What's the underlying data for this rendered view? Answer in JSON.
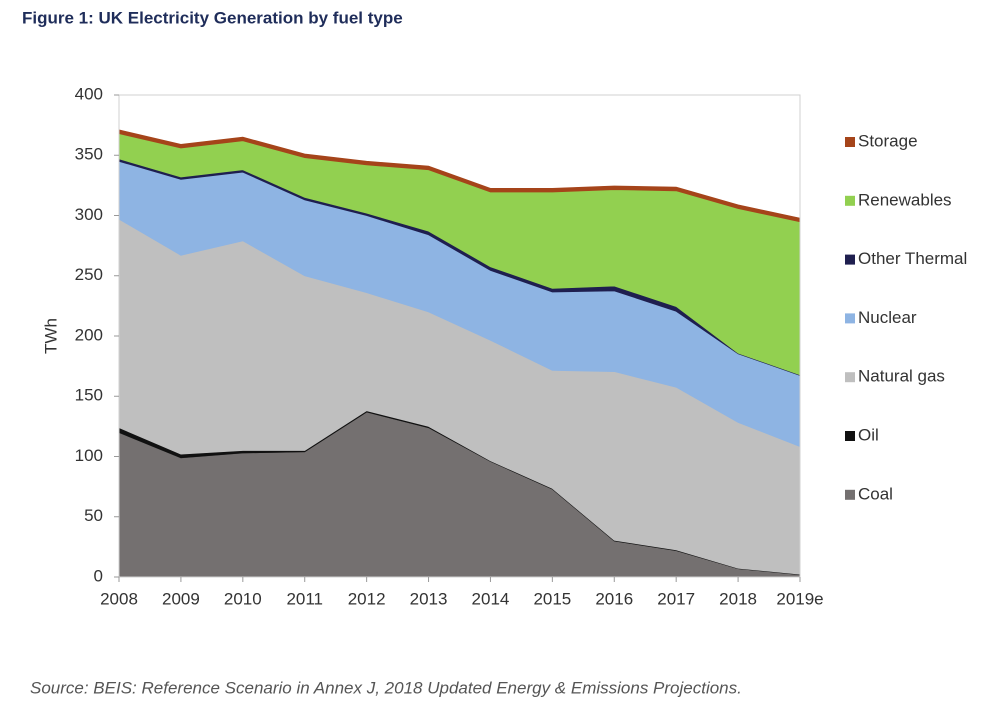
{
  "chart_data": {
    "type": "stacked_area",
    "title": "Figure 1: UK Electricity Generation by fuel type",
    "y_label": "TWh",
    "source": "Source: BEIS: Reference Scenario in Annex J, 2018 Updated Energy & Emissions Projections.",
    "categories": [
      "2008",
      "2009",
      "2010",
      "2011",
      "2012",
      "2013",
      "2014",
      "2015",
      "2016",
      "2017",
      "2018",
      "2019e"
    ],
    "ylim": [
      0,
      400
    ],
    "yticks": [
      0,
      50,
      100,
      150,
      200,
      250,
      300,
      350,
      400
    ],
    "grid": false,
    "legend": "right",
    "series": [
      {
        "name": "Coal",
        "color": "#747070",
        "values": [
          120,
          99,
          103,
          104,
          137,
          124,
          96,
          73,
          30,
          22,
          7,
          2
        ]
      },
      {
        "name": "Oil",
        "color": "#111111",
        "values": [
          4,
          3,
          2,
          1,
          1,
          1,
          0.5,
          0.5,
          0.5,
          0.5,
          0.3,
          0.3
        ]
      },
      {
        "name": "Natural gas",
        "color": "#bfbfbf",
        "values": [
          173,
          165,
          174,
          145,
          98,
          95,
          100,
          98,
          140,
          135,
          121,
          106
        ]
      },
      {
        "name": "Nuclear",
        "color": "#8eb4e3",
        "values": [
          48,
          63,
          57,
          63,
          64,
          64,
          58,
          65,
          67,
          63,
          57,
          59
        ]
      },
      {
        "name": "Other Thermal",
        "color": "#1f1f4f",
        "values": [
          2,
          2,
          2,
          2,
          2,
          3,
          3,
          3,
          4,
          4,
          0.5,
          0.5
        ]
      },
      {
        "name": "Renewables",
        "color": "#92d050",
        "values": [
          21,
          24,
          24,
          33,
          40,
          51,
          62,
          80,
          80,
          96,
          120,
          127
        ]
      },
      {
        "name": "Storage",
        "color": "#a5441a",
        "values": [
          3,
          3,
          3,
          3,
          3,
          3,
          3,
          3,
          3,
          3,
          3,
          3
        ]
      }
    ]
  }
}
